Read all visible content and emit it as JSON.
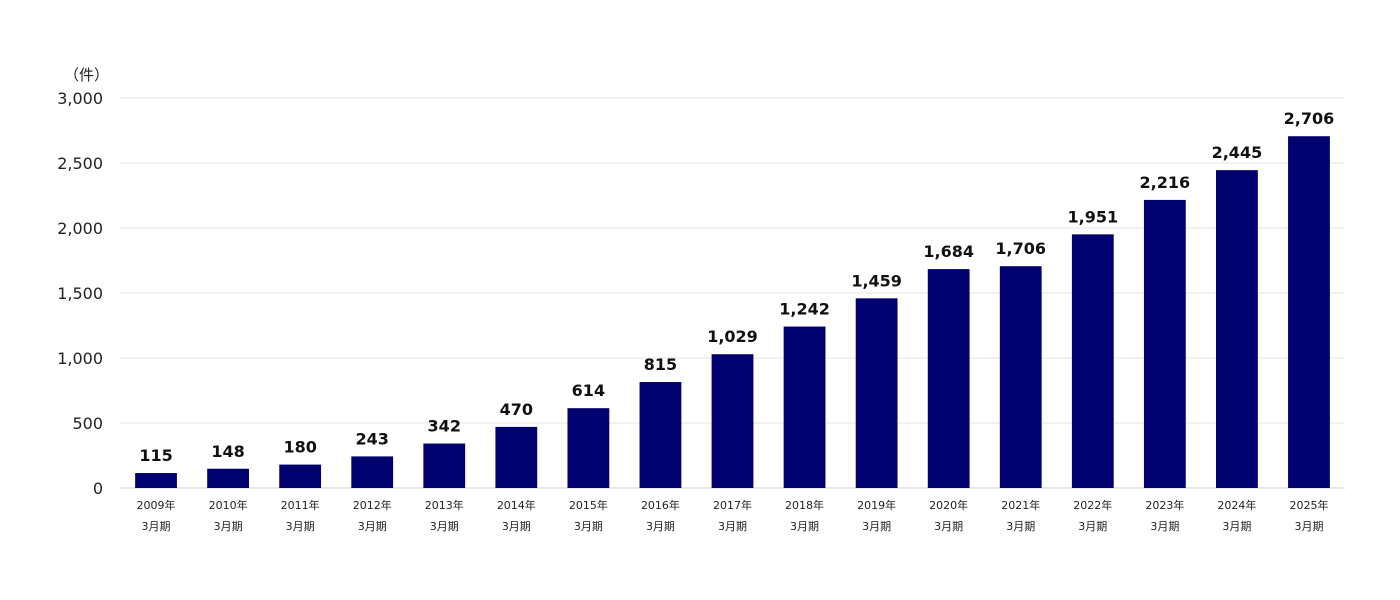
{
  "chart_data": {
    "type": "bar",
    "unit_label": "（件）",
    "categories": [
      {
        "line1": "2009年",
        "line2": "3月期"
      },
      {
        "line1": "2010年",
        "line2": "3月期"
      },
      {
        "line1": "2011年",
        "line2": "3月期"
      },
      {
        "line1": "2012年",
        "line2": "3月期"
      },
      {
        "line1": "2013年",
        "line2": "3月期"
      },
      {
        "line1": "2014年",
        "line2": "3月期"
      },
      {
        "line1": "2015年",
        "line2": "3月期"
      },
      {
        "line1": "2016年",
        "line2": "3月期"
      },
      {
        "line1": "2017年",
        "line2": "3月期"
      },
      {
        "line1": "2018年",
        "line2": "3月期"
      },
      {
        "line1": "2019年",
        "line2": "3月期"
      },
      {
        "line1": "2020年",
        "line2": "3月期"
      },
      {
        "line1": "2021年",
        "line2": "3月期"
      },
      {
        "line1": "2022年",
        "line2": "3月期"
      },
      {
        "line1": "2023年",
        "line2": "3月期"
      },
      {
        "line1": "2024年",
        "line2": "3月期"
      },
      {
        "line1": "2025年",
        "line2": "3月期"
      }
    ],
    "values": [
      115,
      148,
      180,
      243,
      342,
      470,
      614,
      815,
      1029,
      1242,
      1459,
      1684,
      1706,
      1951,
      2216,
      2445,
      2706
    ],
    "value_labels": [
      "115",
      "148",
      "180",
      "243",
      "342",
      "470",
      "614",
      "815",
      "1,029",
      "1,242",
      "1,459",
      "1,684",
      "1,706",
      "1,951",
      "2,216",
      "2,445",
      "2,706"
    ],
    "ylim": [
      0,
      3000
    ],
    "yticks": [
      0,
      500,
      1000,
      1500,
      2000,
      2500,
      3000
    ],
    "ytick_labels": [
      "0",
      "500",
      "1,000",
      "1,500",
      "2,000",
      "2,500",
      "3,000"
    ],
    "bar_color": "#00006e",
    "grid": true,
    "legend": false
  }
}
